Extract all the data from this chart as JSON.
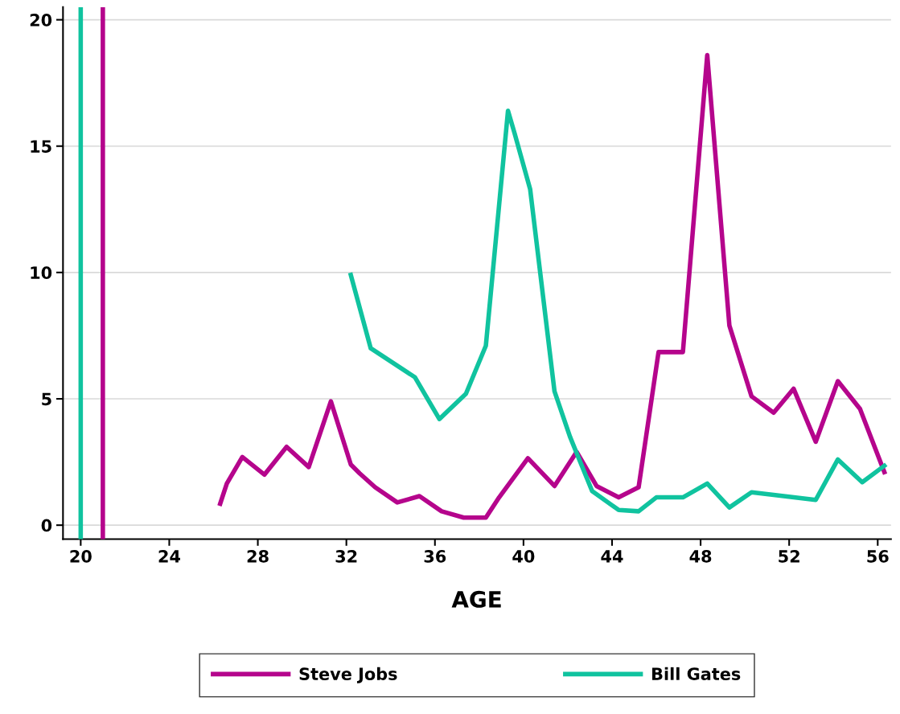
{
  "chart_data": {
    "type": "line",
    "xlabel": "AGE",
    "xlim": [
      19.2,
      56.6
    ],
    "xticks": [
      20,
      24,
      28,
      32,
      36,
      40,
      44,
      48,
      52,
      56
    ],
    "ylim": [
      -0.55,
      20.5
    ],
    "yticks": [
      0,
      5,
      10,
      15,
      20
    ],
    "grid": "y",
    "legend": "bottom",
    "line_style": "solid",
    "marker": "none",
    "ref_lines": [
      {
        "axis": "x",
        "value": 20,
        "label": null,
        "color": "#10c39f"
      },
      {
        "axis": "x",
        "value": 21,
        "label": null,
        "color": "#b5058c"
      }
    ],
    "series": [
      {
        "name": "Steve Jobs",
        "color": "#b5058c",
        "x": [
          26.3,
          26.6,
          27.3,
          28.3,
          29.3,
          30.3,
          31.3,
          32.2,
          32.6,
          33.3,
          34.3,
          35.3,
          36.3,
          37.3,
          38.3,
          38.9,
          40.2,
          41.4,
          42.4,
          43.3,
          44.3,
          45.2,
          46.1,
          47.2,
          48.3,
          49.3,
          50.3,
          51.3,
          52.2,
          53.2,
          54.2,
          55.2,
          56.3
        ],
        "values": [
          0.85,
          1.65,
          2.7,
          2.0,
          3.1,
          2.3,
          4.9,
          2.4,
          2.05,
          1.5,
          0.9,
          1.15,
          0.55,
          0.3,
          0.3,
          1.1,
          2.65,
          1.55,
          2.9,
          1.55,
          1.1,
          1.5,
          6.85,
          6.85,
          18.6,
          7.9,
          5.1,
          4.45,
          5.4,
          3.3,
          5.7,
          4.6,
          2.1
        ]
      },
      {
        "name": "Bill Gates",
        "color": "#10c39f",
        "x": [
          32.2,
          33.1,
          35.1,
          36.2,
          37.4,
          38.3,
          39.3,
          39.6,
          40.3,
          41.4,
          42.1,
          43.1,
          44.3,
          45.2,
          46.0,
          47.2,
          48.3,
          49.3,
          50.3,
          51.3,
          53.2,
          54.2,
          55.3,
          56.3
        ],
        "values": [
          9.9,
          7.0,
          5.85,
          4.2,
          5.2,
          7.1,
          16.4,
          15.5,
          13.3,
          5.3,
          3.5,
          1.35,
          0.6,
          0.55,
          1.1,
          1.1,
          1.65,
          0.7,
          1.3,
          1.2,
          1.0,
          2.6,
          1.7,
          2.35
        ]
      }
    ]
  }
}
